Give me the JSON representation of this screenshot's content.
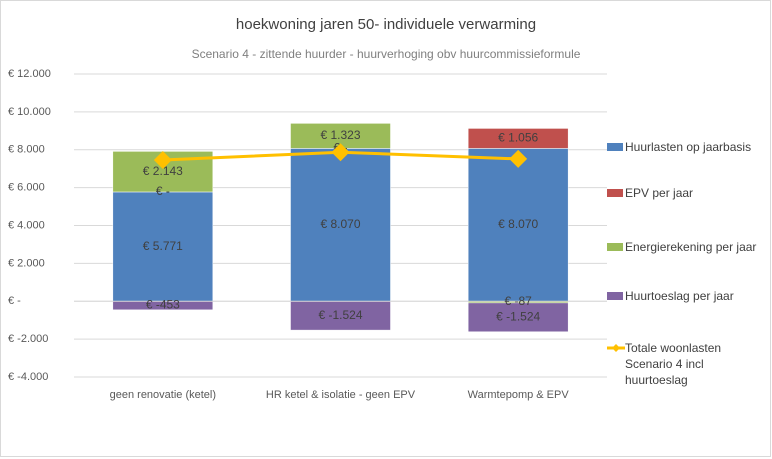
{
  "chart_data": {
    "type": "bar",
    "stacked": true,
    "title": "hoekwoning jaren 50- individuele verwarming",
    "subtitle": "Scenario 4 - zittende huurder - huurverhoging obv huurcommissieformule",
    "categories": [
      "geen renovatie (ketel)",
      "HR ketel & isolatie - geen EPV",
      "Warmtepomp & EPV"
    ],
    "series": [
      {
        "name": "Huurlasten op jaarbasis",
        "color": "#4f81bd",
        "values": [
          5771,
          8070,
          8070
        ],
        "value_labels": [
          "€ 5.771",
          "€ 8.070",
          "€ 8.070"
        ]
      },
      {
        "name": "EPV per jaar",
        "color": "#c0504d",
        "values": [
          0,
          0,
          1056
        ],
        "value_labels": [
          "€ -",
          "€ -",
          "€ 1.056"
        ]
      },
      {
        "name": "Energierekening per jaar",
        "color": "#9bbb59",
        "values": [
          2143,
          1323,
          -87
        ],
        "value_labels": [
          "€ 2.143",
          "€ 1.323",
          "€ -87"
        ]
      },
      {
        "name": "Huurtoeslag per jaar",
        "color": "#8064a2",
        "values": [
          -453,
          -1524,
          -1524
        ],
        "value_labels": [
          "€ -453",
          "€ -1.524",
          "€ -1.524"
        ]
      }
    ],
    "line": {
      "name": "Totale woonlasten Scenario 4 incl huurtoeslag",
      "color": "#ffc000",
      "values": [
        7461,
        7869,
        7515
      ]
    },
    "ylim": [
      -4000,
      12000
    ],
    "yticks": [
      {
        "value": -4000,
        "label": "€ -4.000"
      },
      {
        "value": -2000,
        "label": "€ -2.000"
      },
      {
        "value": 0,
        "label": "€ -"
      },
      {
        "value": 2000,
        "label": "€ 2.000"
      },
      {
        "value": 4000,
        "label": "€ 4.000"
      },
      {
        "value": 6000,
        "label": "€ 6.000"
      },
      {
        "value": 8000,
        "label": "€ 8.000"
      },
      {
        "value": 10000,
        "label": "€ 10.000"
      },
      {
        "value": 12000,
        "label": "€ 12.000"
      }
    ],
    "grid": true
  }
}
